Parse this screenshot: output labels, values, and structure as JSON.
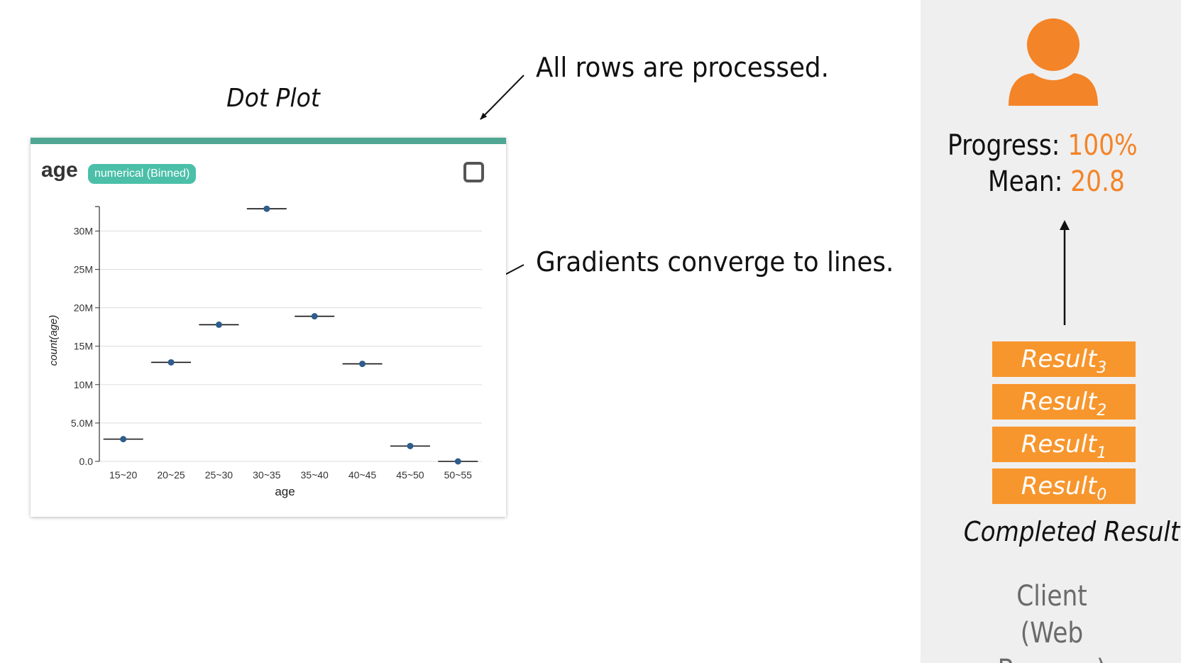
{
  "slide": {
    "title": "Dot Plot",
    "annotation_rows": "All rows are processed.",
    "annotation_gradients": "Gradients converge to lines."
  },
  "card": {
    "field_name": "age",
    "badge": "numerical (Binned)",
    "accent_color": "#4fa693",
    "badge_color": "#4bbfa8",
    "checkbox_icon": "checkbox-icon"
  },
  "chart_data": {
    "type": "scatter",
    "title": "",
    "xlabel": "age",
    "ylabel": "count(age)",
    "categories": [
      "15~20",
      "20~25",
      "25~30",
      "30~35",
      "35~40",
      "40~45",
      "45~50",
      "50~55"
    ],
    "values": [
      2900000,
      12900000,
      17800000,
      32900000,
      18900000,
      12700000,
      2000000,
      0
    ],
    "ylim": [
      0,
      33000000
    ],
    "yticks": [
      0,
      5000000,
      10000000,
      15000000,
      20000000,
      25000000,
      30000000
    ],
    "ytick_labels": [
      "0.0",
      "5.0M",
      "10M",
      "15M",
      "20M",
      "25M",
      "30M"
    ],
    "grid": true,
    "point_color": "#2f5d8c",
    "mean_line_color": "#111111"
  },
  "client": {
    "user_icon": "user-icon",
    "progress_label": "Progress:",
    "progress_value": "100%",
    "mean_label": "Mean:",
    "mean_value": "20.8",
    "results": [
      {
        "base": "Result",
        "sub": "3"
      },
      {
        "base": "Result",
        "sub": "2"
      },
      {
        "base": "Result",
        "sub": "1"
      },
      {
        "base": "Result",
        "sub": "0"
      }
    ],
    "completed_label": "Completed Result",
    "client_line1": "Client",
    "client_line2": "(Web Browser)",
    "accent_color": "#f48428",
    "result_color": "#f7962d",
    "panel_color": "#efefef"
  }
}
